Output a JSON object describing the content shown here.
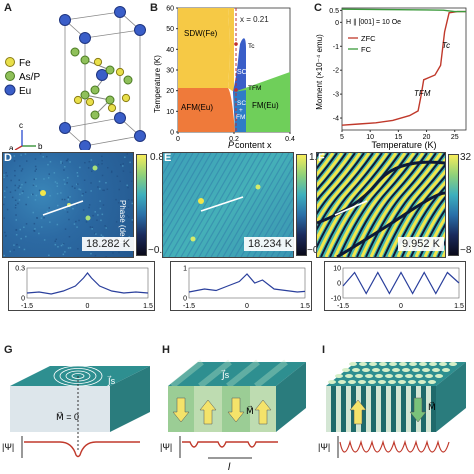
{
  "panel_a": {
    "label": "A",
    "legend": [
      {
        "name": "Fe",
        "color": "#e8df4a"
      },
      {
        "name": "As/P",
        "color": "#8fc05a"
      },
      {
        "name": "Eu",
        "color": "#3a5ec8"
      }
    ],
    "axes": {
      "a": "a",
      "b": "b",
      "c": "c"
    }
  },
  "panel_b": {
    "label": "B",
    "x_label_italic": "P",
    "x_label_rest": " content x",
    "y_label": "Temperature (K)",
    "annot_x": "x = 0.21",
    "regions": {
      "sdw": "SDW(Fe)",
      "afm": "AFM(Eu)",
      "fm": "FM(Eu)",
      "sc": "SC",
      "scfm1": "SC",
      "scfm2": "+",
      "scfm3": "FM"
    },
    "tc": "Tc",
    "tfm": "TFM"
  },
  "panel_c": {
    "label": "C",
    "y_label": "Moment (×10⁻⁴ emu)",
    "x_label": "Temperature (K)",
    "field": "H ∥ [001] = 10 Oe",
    "legend_zfc": "ZFC",
    "legend_fc": "FC",
    "tc": "Tc",
    "tfm": "TFM"
  },
  "panel_d": {
    "label": "D",
    "temp": "18.282 K",
    "cbar_max": "0.8",
    "cbar_min": "−0.3",
    "cbar_label": "Phase (deg)"
  },
  "panel_e": {
    "label": "E",
    "temp": "18.234 K",
    "cbar_max": "1.2",
    "cbar_min": "−0.5",
    "cbar_label": "Phase (deg)"
  },
  "panel_f": {
    "label": "F",
    "temp": "9.952 K",
    "cbar_max": "32",
    "cbar_min": "−8",
    "cbar_label": "Phase (deg)"
  },
  "panel_g": {
    "label": "G",
    "js": "J⃗s",
    "m": "M⃗ = 0",
    "psi": "|Ψ|"
  },
  "panel_h": {
    "label": "H",
    "js": "J⃗s",
    "m": "M⃗",
    "psi": "|Ψ|",
    "l": "l"
  },
  "panel_i": {
    "label": "I",
    "m": "M⃗",
    "psi": "|Ψ|"
  },
  "colors": {
    "map_blue": "#2f6ea8",
    "map_cyan": "#5cc6c0",
    "map_yellow": "#f2e64a",
    "map_dark": "#0e1a38",
    "slab_top": "#2e8f90",
    "slab_side": "#1f6a6b",
    "green_light": "#c9e8b4",
    "red": "#c0392b"
  },
  "chart_data": [
    {
      "type": "area",
      "panel": "B",
      "xlabel": "P content x",
      "ylabel": "Temperature (K)",
      "xlim": [
        0,
        0.4
      ],
      "ylim": [
        0,
        60
      ],
      "xticks": [
        0,
        0.2,
        0.4
      ],
      "yticks": [
        0,
        10,
        20,
        30,
        40,
        50,
        60
      ],
      "annotation": "x = 0.21",
      "regions": [
        "SDW(Fe)",
        "AFM(Eu)",
        "FM(Eu)",
        "SC",
        "SC + FM"
      ]
    },
    {
      "type": "line",
      "panel": "C",
      "xlabel": "Temperature (K)",
      "ylabel": "Moment (×10⁻⁴ emu)",
      "xlim": [
        5,
        27
      ],
      "ylim": [
        -4.5,
        0.6
      ],
      "xticks": [
        5,
        10,
        15,
        20,
        25
      ],
      "yticks": [
        -4,
        -3,
        -2,
        -1,
        0,
        0.5
      ],
      "series": [
        {
          "name": "ZFC",
          "color": "#c0392b",
          "x": [
            5,
            8,
            11,
            14,
            17,
            18.5,
            19,
            19.5,
            20.5,
            21.5,
            22.5,
            23.2,
            24,
            25.5,
            27
          ],
          "y": [
            -4.3,
            -4.25,
            -4.2,
            -4.1,
            -3.9,
            -3.7,
            -3.1,
            -2.4,
            -2.3,
            -2.2,
            -1.8,
            -0.4,
            0.4,
            0.45,
            0.45
          ]
        },
        {
          "name": "FC",
          "color": "#3c9a3c",
          "x": [
            5,
            10,
            15,
            20,
            23,
            24,
            25,
            27
          ],
          "y": [
            0.55,
            0.54,
            0.53,
            0.52,
            0.51,
            0.48,
            0.45,
            0.45
          ]
        }
      ]
    },
    {
      "type": "line",
      "panel": "D",
      "xlim": [
        -1.5,
        1.5
      ],
      "ylim": [
        0,
        0.3
      ],
      "xticks": [
        -1.5,
        0,
        1.5
      ],
      "yticks": [
        0,
        0.3
      ],
      "series": [
        {
          "x": [
            -1.5,
            -1.2,
            -0.9,
            -0.6,
            -0.3,
            -0.1,
            0,
            0.1,
            0.3,
            0.6,
            0.9,
            1.2,
            1.5
          ],
          "y": [
            0.05,
            0.06,
            0.04,
            0.07,
            0.12,
            0.2,
            0.25,
            0.2,
            0.12,
            0.07,
            0.05,
            0.06,
            0.05
          ]
        }
      ]
    },
    {
      "type": "line",
      "panel": "E",
      "xlim": [
        -1.5,
        1.5
      ],
      "ylim": [
        0,
        1
      ],
      "xticks": [
        -1.5,
        0,
        1.5
      ],
      "yticks": [
        0,
        1
      ],
      "series": [
        {
          "x": [
            -1.5,
            -1.1,
            -0.8,
            -0.5,
            -0.2,
            0,
            0.2,
            0.4,
            0.7,
            1.0,
            1.3,
            1.5
          ],
          "y": [
            0.2,
            0.3,
            0.25,
            0.4,
            0.55,
            0.8,
            0.5,
            0.6,
            0.3,
            0.25,
            0.2,
            0.22
          ]
        }
      ]
    },
    {
      "type": "line",
      "panel": "F",
      "xlim": [
        -1.5,
        1.5
      ],
      "ylim": [
        -10,
        10
      ],
      "xticks": [
        -1.5,
        0,
        1.5
      ],
      "yticks": [
        -10,
        0,
        10
      ],
      "series": [
        {
          "x": [
            -1.5,
            -1.2,
            -0.9,
            -0.6,
            -0.3,
            0,
            0.3,
            0.6,
            0.9,
            1.2,
            1.5
          ],
          "y": [
            -2,
            7,
            -7,
            7,
            -7,
            7,
            -7,
            7,
            -7,
            7,
            0
          ]
        }
      ]
    }
  ]
}
